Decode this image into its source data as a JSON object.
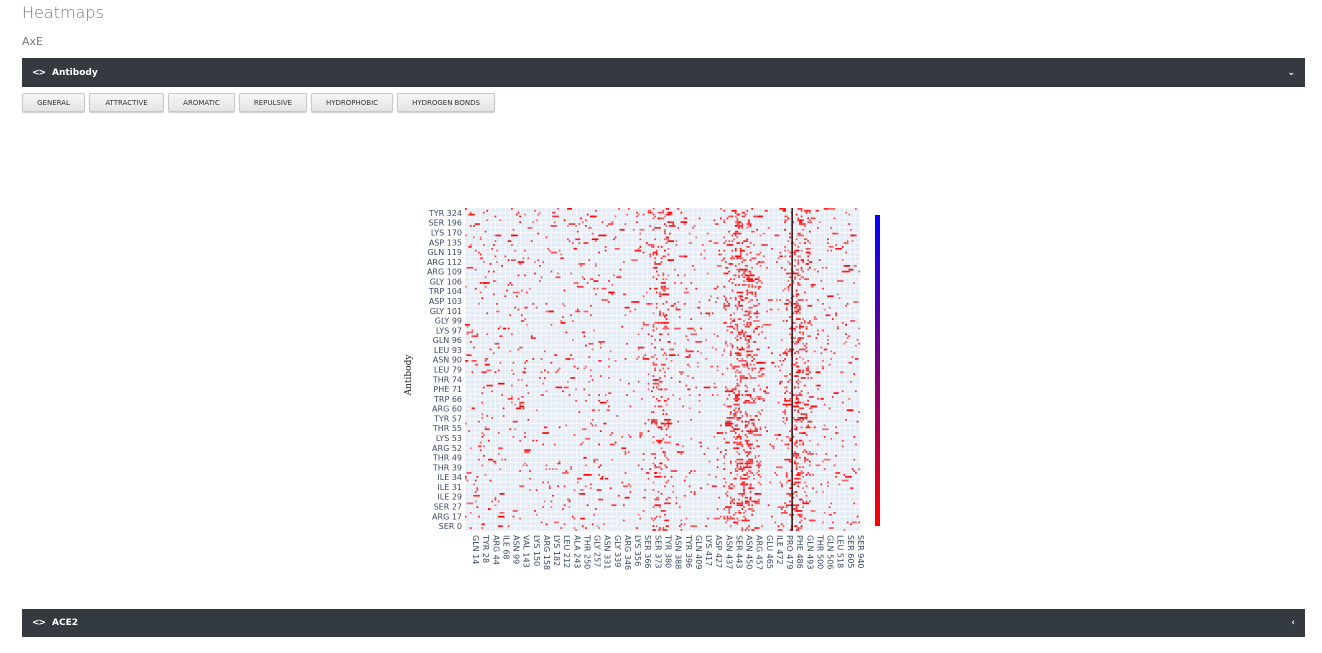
{
  "page": {
    "title": "Heatmaps",
    "subtitle": "AxE"
  },
  "panels": {
    "antibody": {
      "title": "Antibody",
      "collapse_icon": "chevron-down-icon",
      "toggle_icon": "code-icon"
    },
    "ace2": {
      "title": "ACE2",
      "collapse_icon": "chevron-left-icon",
      "toggle_icon": "code-icon"
    }
  },
  "buttons": [
    "GENERAL",
    "ATTRACTIVE",
    "AROMATIC",
    "REPULSIVE",
    "HYDROPHOBIC",
    "HYDROGEN BONDS"
  ],
  "chart_data": {
    "type": "heatmap",
    "ylabel": "Antibody",
    "xlabel": "",
    "y_ticks": [
      "SER 0",
      "ARG 17",
      "SER 27",
      "ILE 29",
      "ILE 31",
      "ILE 34",
      "THR 39",
      "THR 49",
      "ARG 52",
      "LYS 53",
      "THR 55",
      "TYR 57",
      "ARG 60",
      "TRP 66",
      "PHE 71",
      "THR 74",
      "LEU 79",
      "ASN 90",
      "LEU 93",
      "GLN 96",
      "LYS 97",
      "GLY 99",
      "GLY 101",
      "ASP 103",
      "TRP 104",
      "GLY 106",
      "ARG 109",
      "ARG 112",
      "GLN 119",
      "ASP 135",
      "LYS 170",
      "SER 196",
      "TYR 324"
    ],
    "x_ticks": [
      "GLN 14",
      "TYR 28",
      "ARG 44",
      "ILE 68",
      "ASN 99",
      "VAL 143",
      "LYS 150",
      "ARG 158",
      "LYS 182",
      "LEU 212",
      "ALA 243",
      "THR 250",
      "GLY 257",
      "ASN 331",
      "GLY 339",
      "ARG 346",
      "LYS 356",
      "SER 366",
      "SER 373",
      "TYR 380",
      "ASN 388",
      "TYR 396",
      "GLN 409",
      "LYS 417",
      "ASP 427",
      "ASN 437",
      "SER 443",
      "ASN 450",
      "ARG 457",
      "GLU 465",
      "ILE 472",
      "PRO 479",
      "PHE 486",
      "GLN 493",
      "THR 500",
      "GLN 506",
      "LEU 518",
      "SER 605",
      "SER 940"
    ],
    "colorbar": {
      "min": 0,
      "max": 850,
      "ticks": [
        100,
        200,
        300,
        400,
        500,
        600,
        700,
        800
      ],
      "colors": [
        "#ff0000",
        "#0000ff"
      ]
    },
    "grid": true,
    "dense_columns": [
      "PHE 486",
      "GLN 493",
      "ASN 450",
      "ARG 457",
      "SER 443",
      "TYR 380"
    ],
    "highlight_column": "PHE 486"
  }
}
